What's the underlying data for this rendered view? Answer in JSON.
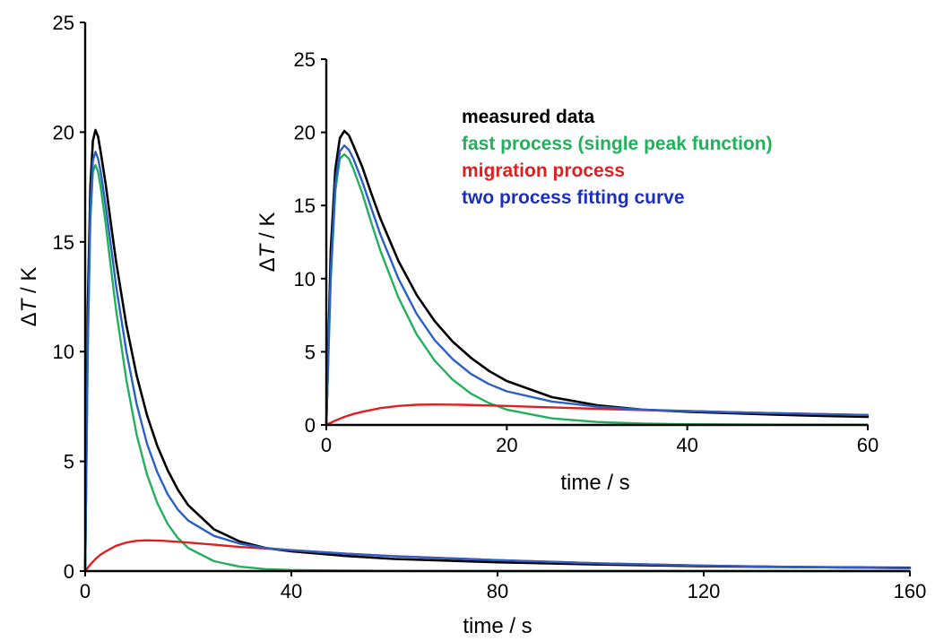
{
  "chart_data": [
    {
      "type": "line",
      "xlabel": "time / s",
      "ylabel": {
        "prefix": "Δ",
        "italic": "T",
        "suffix": " / K"
      },
      "xlim": [
        0,
        160
      ],
      "ylim": [
        0,
        25
      ],
      "xticks": [
        0,
        40,
        80,
        120,
        160
      ],
      "yticks": [
        0,
        5,
        10,
        15,
        20,
        25
      ],
      "grid": false,
      "series": [
        {
          "name": "measured data",
          "color": "#000000",
          "x": [
            0,
            0.5,
            1,
            1.5,
            2,
            2.5,
            3,
            4,
            5,
            6,
            8,
            10,
            12,
            14,
            16,
            18,
            20,
            25,
            30,
            35,
            40,
            50,
            60,
            80,
            100,
            120,
            140,
            160
          ],
          "y": [
            0,
            12,
            17.5,
            19.6,
            20.1,
            19.8,
            19.1,
            17.6,
            15.8,
            14.1,
            11.2,
            8.9,
            7.1,
            5.7,
            4.6,
            3.7,
            3.0,
            1.9,
            1.35,
            1.05,
            0.9,
            0.7,
            0.55,
            0.4,
            0.3,
            0.22,
            0.18,
            0.15
          ]
        },
        {
          "name": "fast process (single peak function)",
          "color": "#22b05a",
          "x": [
            0,
            0.5,
            1,
            1.5,
            2,
            2.5,
            3,
            4,
            5,
            6,
            8,
            10,
            12,
            14,
            16,
            18,
            20,
            25,
            30,
            35,
            40,
            50,
            60,
            80,
            100,
            120,
            140,
            160
          ],
          "y": [
            0,
            10,
            16,
            18.2,
            18.5,
            18.2,
            17.5,
            15.8,
            13.8,
            11.9,
            8.7,
            6.2,
            4.4,
            3.1,
            2.15,
            1.5,
            1.05,
            0.45,
            0.2,
            0.09,
            0.05,
            0.02,
            0.01,
            0,
            0,
            0,
            0,
            0
          ]
        },
        {
          "name": "migration process",
          "color": "#e02020",
          "x": [
            0,
            1,
            2,
            3,
            4,
            6,
            8,
            10,
            12,
            15,
            20,
            25,
            30,
            40,
            50,
            60,
            80,
            100,
            120,
            140,
            160
          ],
          "y": [
            0,
            0.3,
            0.55,
            0.75,
            0.9,
            1.15,
            1.3,
            1.38,
            1.4,
            1.38,
            1.3,
            1.2,
            1.1,
            0.95,
            0.8,
            0.68,
            0.5,
            0.35,
            0.25,
            0.18,
            0.13
          ]
        },
        {
          "name": "two process fitting curve",
          "color": "#2a5fc8",
          "x": [
            0,
            0.5,
            1,
            1.5,
            2,
            2.5,
            3,
            4,
            5,
            6,
            8,
            10,
            12,
            14,
            16,
            18,
            20,
            25,
            30,
            35,
            40,
            50,
            60,
            80,
            100,
            120,
            140,
            160
          ],
          "y": [
            0,
            10.5,
            16.5,
            18.7,
            19.1,
            18.8,
            18.2,
            16.6,
            14.8,
            13.0,
            10.0,
            7.6,
            5.8,
            4.5,
            3.5,
            2.8,
            2.3,
            1.6,
            1.25,
            1.05,
            0.95,
            0.8,
            0.68,
            0.5,
            0.35,
            0.25,
            0.18,
            0.13
          ]
        }
      ]
    },
    {
      "type": "line",
      "xlabel": "time / s",
      "ylabel": {
        "prefix": "Δ",
        "italic": "T",
        "suffix": " / K"
      },
      "xlim": [
        0,
        60
      ],
      "ylim": [
        0,
        25
      ],
      "xticks": [
        0,
        20,
        40,
        60
      ],
      "yticks": [
        0,
        5,
        10,
        15,
        20,
        25
      ],
      "grid": false,
      "legend_position": "top-right",
      "series": [
        {
          "name": "measured data",
          "color": "#000000",
          "x": [
            0,
            0.5,
            1,
            1.5,
            2,
            2.5,
            3,
            4,
            5,
            6,
            8,
            10,
            12,
            14,
            16,
            18,
            20,
            25,
            30,
            35,
            40,
            45,
            50,
            55,
            60
          ],
          "y": [
            0,
            12,
            17.5,
            19.6,
            20.1,
            19.8,
            19.1,
            17.6,
            15.8,
            14.1,
            11.2,
            8.9,
            7.1,
            5.7,
            4.6,
            3.7,
            3.0,
            1.9,
            1.35,
            1.05,
            0.9,
            0.8,
            0.7,
            0.62,
            0.55
          ]
        },
        {
          "name": "fast process (single peak function)",
          "color": "#22b05a",
          "x": [
            0,
            0.5,
            1,
            1.5,
            2,
            2.5,
            3,
            4,
            5,
            6,
            8,
            10,
            12,
            14,
            16,
            18,
            20,
            25,
            30,
            35,
            40,
            45,
            50,
            55,
            60
          ],
          "y": [
            0,
            10,
            16,
            18.2,
            18.5,
            18.2,
            17.5,
            15.8,
            13.8,
            11.9,
            8.7,
            6.2,
            4.4,
            3.1,
            2.15,
            1.5,
            1.05,
            0.45,
            0.2,
            0.09,
            0.05,
            0.03,
            0.02,
            0.01,
            0.01
          ]
        },
        {
          "name": "migration process",
          "color": "#e02020",
          "x": [
            0,
            1,
            2,
            3,
            4,
            6,
            8,
            10,
            12,
            15,
            20,
            25,
            30,
            35,
            40,
            45,
            50,
            55,
            60
          ],
          "y": [
            0,
            0.3,
            0.55,
            0.75,
            0.9,
            1.15,
            1.3,
            1.38,
            1.4,
            1.38,
            1.3,
            1.2,
            1.1,
            1.02,
            0.95,
            0.87,
            0.8,
            0.74,
            0.68
          ]
        },
        {
          "name": "two process fitting curve",
          "color": "#2a5fc8",
          "x": [
            0,
            0.5,
            1,
            1.5,
            2,
            2.5,
            3,
            4,
            5,
            6,
            8,
            10,
            12,
            14,
            16,
            18,
            20,
            25,
            30,
            35,
            40,
            45,
            50,
            55,
            60
          ],
          "y": [
            0,
            10.5,
            16.5,
            18.7,
            19.1,
            18.8,
            18.2,
            16.6,
            14.8,
            13.0,
            10.0,
            7.6,
            5.8,
            4.5,
            3.5,
            2.8,
            2.3,
            1.6,
            1.25,
            1.05,
            0.95,
            0.87,
            0.8,
            0.74,
            0.68
          ]
        }
      ]
    }
  ]
}
